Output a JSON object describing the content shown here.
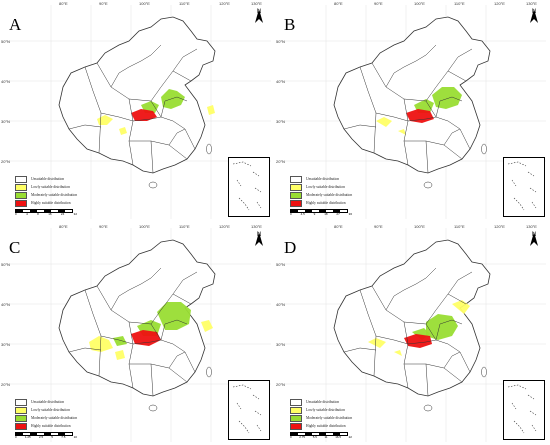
{
  "panels": [
    {
      "label": "A",
      "distribution": "A",
      "scale_ticks": [
        "0",
        "4",
        "8",
        "16",
        "24",
        "32"
      ]
    },
    {
      "label": "B",
      "distribution": "B",
      "scale_ticks": [
        "0",
        "4.5",
        "9",
        "18",
        "27",
        "36"
      ]
    },
    {
      "label": "C",
      "distribution": "C",
      "scale_ticks": [
        "0",
        "1.25",
        "2.5",
        "5",
        "7.5",
        "10"
      ]
    },
    {
      "label": "D",
      "distribution": "D",
      "scale_ticks": [
        "0",
        "2.75",
        "5.5",
        "11",
        "16.5",
        "22"
      ]
    }
  ],
  "north_label": "N",
  "longitudes": [
    "80°E",
    "90°E",
    "100°E",
    "110°E",
    "120°E",
    "130°E"
  ],
  "latitudes": [
    "50°N",
    "40°N",
    "30°N",
    "20°N"
  ],
  "legend": [
    {
      "label": "Unsuitable distribution",
      "color": "#ffffff"
    },
    {
      "label": "Lowly suitable distribution",
      "color": "#ffff66"
    },
    {
      "label": "Moderately suitable distribution",
      "color": "#99dd33"
    },
    {
      "label": "Highly suitable distribution",
      "color": "#ee1111"
    }
  ],
  "colors": {
    "outline": "#333333",
    "low": "#ffff66",
    "moderate": "#99dd33",
    "high": "#ee1111"
  }
}
